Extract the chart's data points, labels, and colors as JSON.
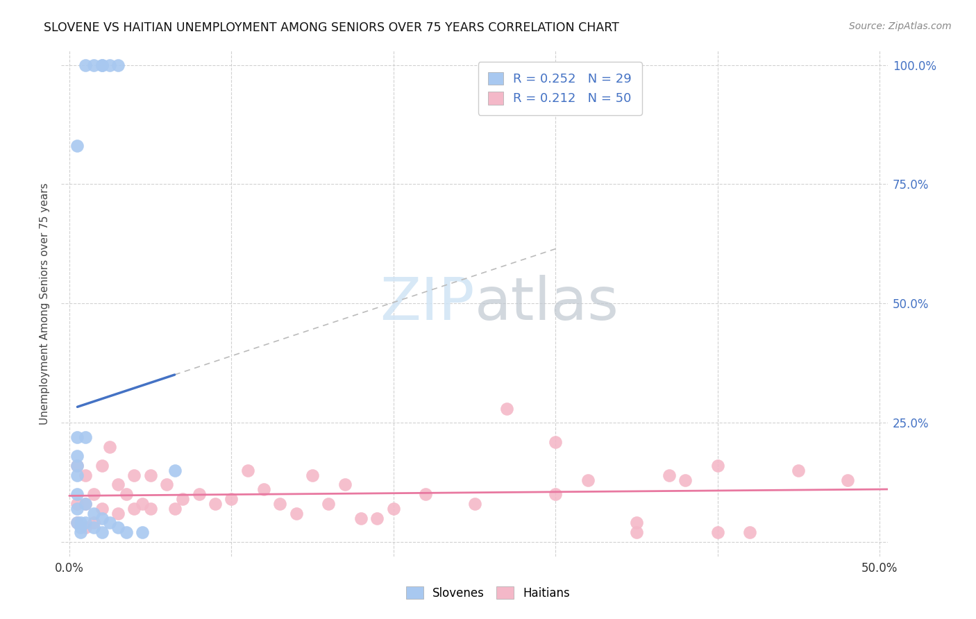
{
  "title": "SLOVENE VS HAITIAN UNEMPLOYMENT AMONG SENIORS OVER 75 YEARS CORRELATION CHART",
  "source": "Source: ZipAtlas.com",
  "ylabel": "Unemployment Among Seniors over 75 years",
  "xlim": [
    -0.005,
    0.505
  ],
  "ylim": [
    -0.03,
    1.03
  ],
  "xtick_positions": [
    0.0,
    0.1,
    0.2,
    0.3,
    0.4,
    0.5
  ],
  "xticklabels": [
    "0.0%",
    "",
    "",
    "",
    "",
    "50.0%"
  ],
  "ytick_positions": [
    0.0,
    0.25,
    0.5,
    0.75,
    1.0
  ],
  "yticklabels_right": [
    "",
    "25.0%",
    "50.0%",
    "75.0%",
    "100.0%"
  ],
  "slovene_color": "#a8c8f0",
  "haitian_color": "#f4b8c8",
  "slovene_edge": "#7aaad8",
  "haitian_edge": "#e890a8",
  "line_slovene": "#4472c4",
  "line_haitian": "#e878a0",
  "dash_color": "#bbbbbb",
  "legend_text_color": "#4472c4",
  "slovene_R": 0.252,
  "slovene_N": 29,
  "haitian_R": 0.212,
  "haitian_N": 50,
  "watermark_color": "#d0e4f5",
  "slovene_x": [
    0.01,
    0.02,
    0.025,
    0.03,
    0.015,
    0.02,
    0.005,
    0.005,
    0.005,
    0.005,
    0.005,
    0.005,
    0.005,
    0.005,
    0.007,
    0.007,
    0.007,
    0.01,
    0.01,
    0.01,
    0.015,
    0.015,
    0.02,
    0.02,
    0.025,
    0.03,
    0.035,
    0.045,
    0.065
  ],
  "slovene_y": [
    1.0,
    1.0,
    1.0,
    1.0,
    1.0,
    1.0,
    0.83,
    0.22,
    0.18,
    0.16,
    0.14,
    0.1,
    0.07,
    0.04,
    0.04,
    0.03,
    0.02,
    0.22,
    0.08,
    0.04,
    0.06,
    0.03,
    0.05,
    0.02,
    0.04,
    0.03,
    0.02,
    0.02,
    0.15
  ],
  "haitian_x": [
    0.005,
    0.005,
    0.005,
    0.01,
    0.01,
    0.01,
    0.015,
    0.015,
    0.02,
    0.02,
    0.025,
    0.03,
    0.03,
    0.035,
    0.04,
    0.04,
    0.045,
    0.05,
    0.05,
    0.06,
    0.065,
    0.07,
    0.08,
    0.09,
    0.1,
    0.11,
    0.12,
    0.13,
    0.14,
    0.15,
    0.16,
    0.17,
    0.18,
    0.19,
    0.2,
    0.22,
    0.25,
    0.27,
    0.3,
    0.32,
    0.35,
    0.37,
    0.4,
    0.42,
    0.45,
    0.48,
    0.3,
    0.35,
    0.38,
    0.4
  ],
  "haitian_y": [
    0.16,
    0.08,
    0.04,
    0.14,
    0.08,
    0.03,
    0.1,
    0.04,
    0.16,
    0.07,
    0.2,
    0.12,
    0.06,
    0.1,
    0.14,
    0.07,
    0.08,
    0.14,
    0.07,
    0.12,
    0.07,
    0.09,
    0.1,
    0.08,
    0.09,
    0.15,
    0.11,
    0.08,
    0.06,
    0.14,
    0.08,
    0.12,
    0.05,
    0.05,
    0.07,
    0.1,
    0.08,
    0.28,
    0.1,
    0.13,
    0.02,
    0.14,
    0.02,
    0.02,
    0.15,
    0.13,
    0.21,
    0.04,
    0.13,
    0.16
  ]
}
